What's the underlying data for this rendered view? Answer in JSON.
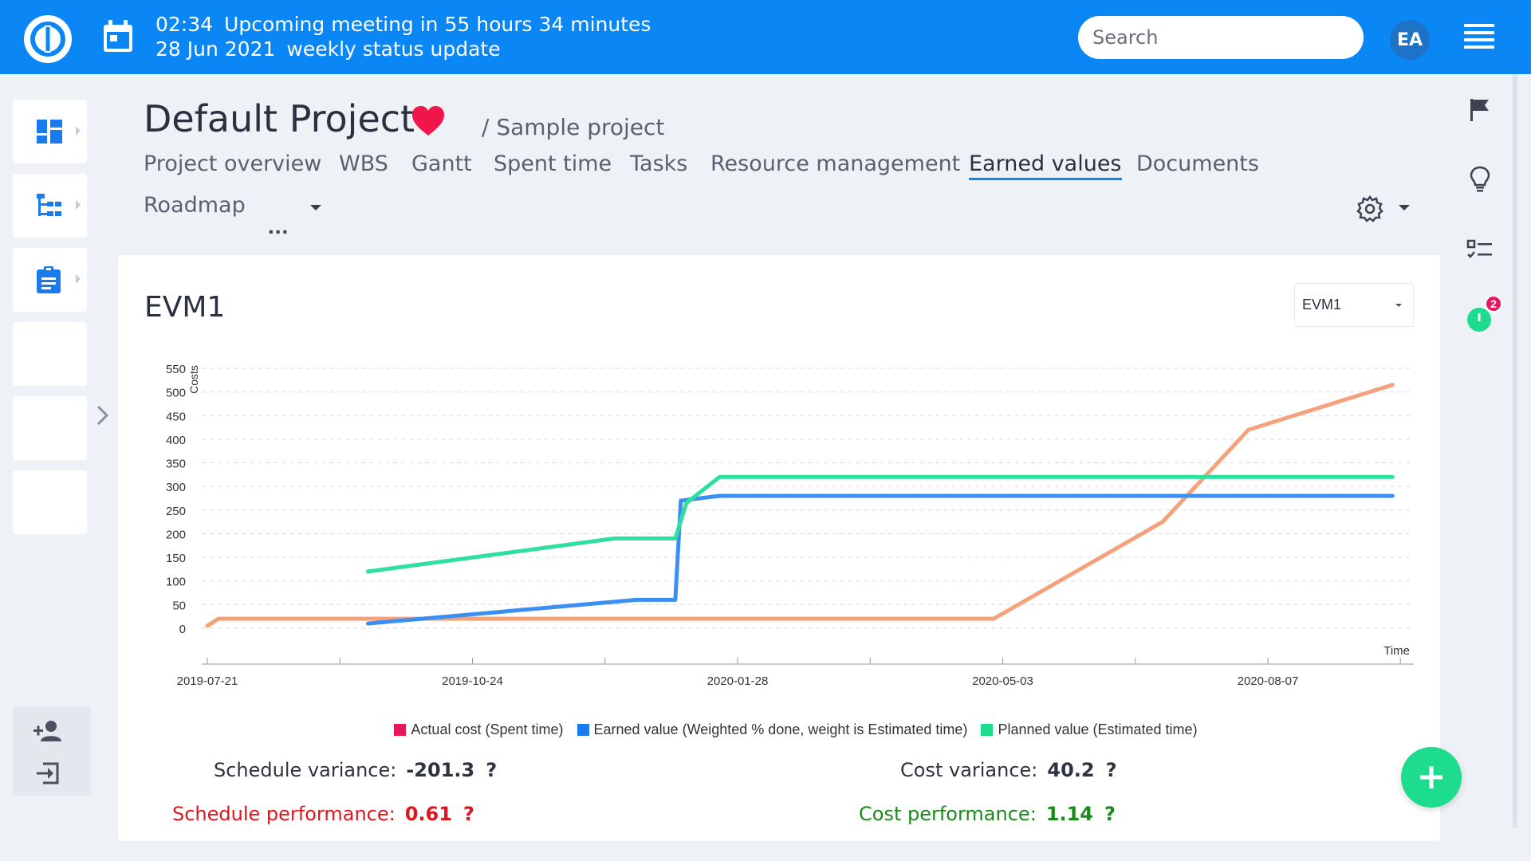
{
  "topbar": {
    "meeting_time": "02:34",
    "meeting_message": "Upcoming meeting in 55 hours 34 minutes",
    "meeting_date": "28 Jun 2021",
    "meeting_name": "weekly status update",
    "search_placeholder": "Search",
    "avatar_initials": "EA",
    "colors": {
      "bar": "#0a86f5"
    }
  },
  "project": {
    "title": "Default Project",
    "breadcrumb": "/ Sample project"
  },
  "tabs": [
    {
      "label": "Project overview"
    },
    {
      "label": "WBS"
    },
    {
      "label": "Gantt"
    },
    {
      "label": "Spent time"
    },
    {
      "label": "Tasks"
    },
    {
      "label": "Resource management"
    },
    {
      "label": "Earned values",
      "active": true
    },
    {
      "label": "Documents"
    },
    {
      "label": "Roadmap"
    }
  ],
  "more_label": "...",
  "right_rail": {
    "badge_count": "2",
    "icons": [
      "flag-icon",
      "lightbulb-icon",
      "checklist-icon",
      "timer-icon"
    ]
  },
  "panel": {
    "title": "EVM1",
    "selected": "EVM1"
  },
  "chart_data": {
    "type": "line",
    "ylabel": "Costs",
    "xlabel": "Time",
    "ylim": [
      0,
      550
    ],
    "yticks": [
      0,
      50,
      100,
      150,
      200,
      250,
      300,
      350,
      400,
      450,
      500,
      550
    ],
    "xtick_labels": [
      "2019-07-21",
      "2019-10-24",
      "2020-01-28",
      "2020-05-03",
      "2020-08-07"
    ],
    "grid": true,
    "legend_position": "bottom",
    "series": [
      {
        "name": "Actual cost (Spent time)",
        "color": "#e6175a",
        "line_color": "#f4a27c",
        "points": [
          [
            "2019-07-21",
            5
          ],
          [
            "2019-07-25",
            20
          ],
          [
            "2020-04-30",
            20
          ],
          [
            "2020-06-30",
            225
          ],
          [
            "2020-07-31",
            420
          ],
          [
            "2020-09-21",
            515
          ]
        ]
      },
      {
        "name": "Earned value (Weighted % done, weight is Estimated time)",
        "color": "#1a7af0",
        "line_color": "#3b8ff0",
        "points": [
          [
            "2019-09-17",
            10
          ],
          [
            "2019-12-23",
            60
          ],
          [
            "2020-01-06",
            60
          ],
          [
            "2020-01-08",
            270
          ],
          [
            "2020-01-22",
            280
          ],
          [
            "2020-09-21",
            280
          ]
        ]
      },
      {
        "name": "Planned value (Estimated time)",
        "color": "#1ddc8e",
        "line_color": "#2ee0a0",
        "points": [
          [
            "2019-09-17",
            120
          ],
          [
            "2019-12-15",
            190
          ],
          [
            "2020-01-06",
            190
          ],
          [
            "2020-01-10",
            265
          ],
          [
            "2020-01-22",
            320
          ],
          [
            "2020-09-21",
            320
          ]
        ]
      }
    ]
  },
  "stats": {
    "schedule_variance_label": "Schedule variance:",
    "schedule_variance_value": "-201.3",
    "cost_variance_label": "Cost variance:",
    "cost_variance_value": "40.2",
    "schedule_performance_label": "Schedule performance:",
    "schedule_performance_value": "0.61",
    "cost_performance_label": "Cost performance:",
    "cost_performance_value": "1.14",
    "help": "?",
    "colors": {
      "bad": "#e0161e",
      "good": "#1a8a1a"
    }
  }
}
